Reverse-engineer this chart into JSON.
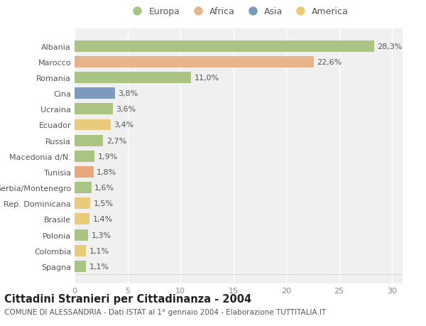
{
  "categories": [
    "Albania",
    "Marocco",
    "Romania",
    "Cina",
    "Ucraina",
    "Ecuador",
    "Russia",
    "Macedonia d/N.",
    "Tunisia",
    "Serbia/Montenegro",
    "Rep. Dominicana",
    "Brasile",
    "Polonia",
    "Colombia",
    "Spagna"
  ],
  "values": [
    28.3,
    22.6,
    11.0,
    3.8,
    3.6,
    3.4,
    2.7,
    1.9,
    1.8,
    1.6,
    1.5,
    1.4,
    1.3,
    1.1,
    1.1
  ],
  "labels": [
    "28,3%",
    "22,6%",
    "11,0%",
    "3,8%",
    "3,6%",
    "3,4%",
    "2,7%",
    "1,9%",
    "1,8%",
    "1,6%",
    "1,5%",
    "1,4%",
    "1,3%",
    "1,1%",
    "1,1%"
  ],
  "colors": [
    "#aac484",
    "#e8b48c",
    "#aac484",
    "#7a9abf",
    "#aac484",
    "#e8cc7a",
    "#aac484",
    "#aac484",
    "#e8a87a",
    "#aac484",
    "#e8cc7a",
    "#e8cc7a",
    "#aac484",
    "#e8cc7a",
    "#aac484"
  ],
  "legend_labels": [
    "Europa",
    "Africa",
    "Asia",
    "America"
  ],
  "legend_colors": [
    "#aac484",
    "#e8b48c",
    "#7a9abf",
    "#e8cc7a"
  ],
  "title": "Cittadini Stranieri per Cittadinanza - 2004",
  "subtitle": "COMUNE DI ALESSANDRIA - Dati ISTAT al 1° gennaio 2004 - Elaborazione TUTTITALIA.IT",
  "xlim": [
    0,
    31
  ],
  "xticks": [
    0,
    5,
    10,
    15,
    20,
    25,
    30
  ],
  "bg_color": "#ffffff",
  "plot_bg_color": "#f0f0f0",
  "grid_color": "#ffffff",
  "bar_height": 0.72,
  "label_fontsize": 8,
  "tick_fontsize": 8,
  "title_fontsize": 10.5,
  "subtitle_fontsize": 7.5
}
